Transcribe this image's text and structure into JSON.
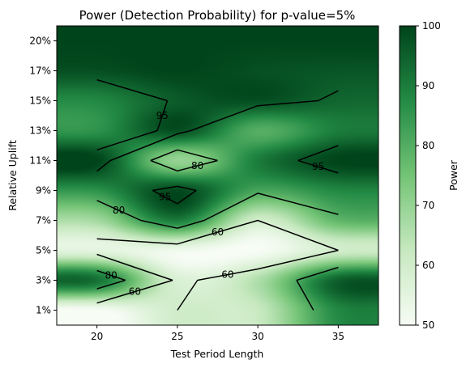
{
  "chart_data": {
    "type": "heatmap",
    "title": "Power (Detection Probability) for p-value=5%",
    "xlabel": "Test Period Length",
    "ylabel": "Relative Uplift",
    "x_ticks": [
      "20",
      "25",
      "30",
      "35"
    ],
    "y_ticks": [
      "1%",
      "3%",
      "5%",
      "7%",
      "9%",
      "11%",
      "13%",
      "15%",
      "17%",
      "20%"
    ],
    "x": [
      20,
      25,
      30,
      35
    ],
    "y": [
      "1%",
      "3%",
      "5%",
      "7%",
      "9%",
      "11%",
      "13%",
      "15%",
      "17%",
      "20%"
    ],
    "z": [
      [
        50,
        60,
        62,
        88
      ],
      [
        92,
        58,
        66,
        95
      ],
      [
        55,
        52,
        50,
        60
      ],
      [
        68,
        90,
        60,
        78
      ],
      [
        86,
        99,
        82,
        88
      ],
      [
        100,
        70,
        90,
        100
      ],
      [
        86,
        98,
        80,
        90
      ],
      [
        88,
        96,
        98,
        94
      ],
      [
        98,
        100,
        98,
        97
      ],
      [
        100,
        100,
        100,
        100
      ]
    ],
    "colorbar": {
      "label": "Power",
      "ticks": [
        "50",
        "60",
        "70",
        "80",
        "90",
        "100"
      ],
      "range": [
        50,
        100
      ]
    },
    "colormap": [
      "#f7fcf5",
      "#c7e9c0",
      "#74c476",
      "#238b45",
      "#00441b"
    ],
    "contour_levels": [
      {
        "level": 60,
        "label": "60"
      },
      {
        "level": 80,
        "label": "80"
      },
      {
        "level": 95,
        "label": "95"
      }
    ]
  }
}
